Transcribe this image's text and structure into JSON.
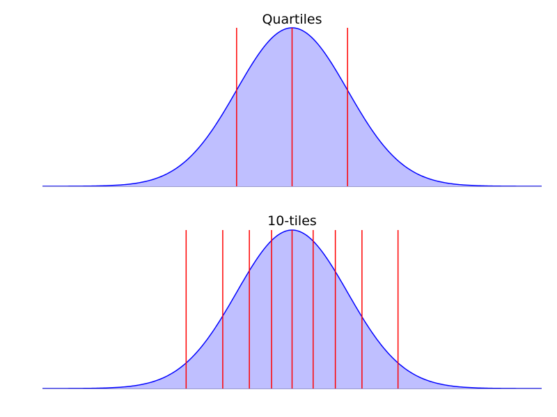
{
  "chart_data": [
    {
      "type": "area",
      "title": "Quartiles",
      "distribution": "standard normal density",
      "x_range": [
        -4.5,
        4.5
      ],
      "ylim": [
        0,
        0.4
      ],
      "axes_visible": false,
      "grid": false,
      "quantile_lines_x": [
        -1.0,
        0.0,
        1.0
      ],
      "fill_color": "#bfbfff",
      "curve_color": "#0000ff",
      "line_color": "#ff0000"
    },
    {
      "type": "area",
      "title": "10-tiles",
      "distribution": "standard normal density",
      "x_range": [
        -4.5,
        4.5
      ],
      "ylim": [
        0,
        0.4
      ],
      "axes_visible": false,
      "grid": false,
      "quantile_lines_x": [
        -1.91,
        -1.25,
        -0.77,
        -0.37,
        0.0,
        0.38,
        0.78,
        1.26,
        1.91
      ],
      "fill_color": "#bfbfff",
      "curve_color": "#0000ff",
      "line_color": "#ff0000"
    }
  ]
}
